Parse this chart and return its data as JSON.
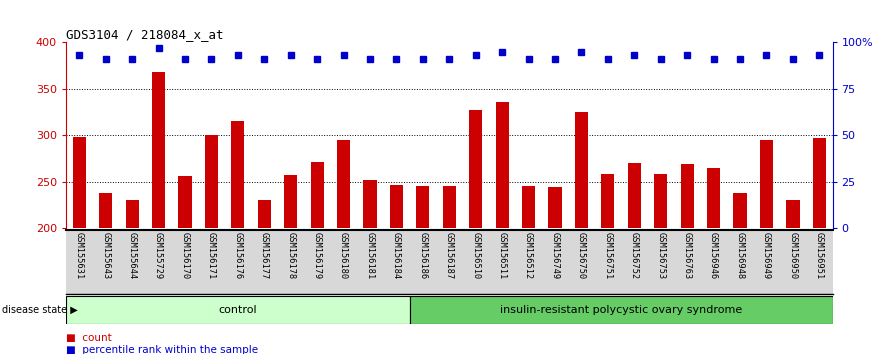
{
  "title": "GDS3104 / 218084_x_at",
  "samples": [
    "GSM155631",
    "GSM155643",
    "GSM155644",
    "GSM155729",
    "GSM156170",
    "GSM156171",
    "GSM156176",
    "GSM156177",
    "GSM156178",
    "GSM156179",
    "GSM156180",
    "GSM156181",
    "GSM156184",
    "GSM156186",
    "GSM156187",
    "GSM156510",
    "GSM156511",
    "GSM156512",
    "GSM156749",
    "GSM156750",
    "GSM156751",
    "GSM156752",
    "GSM156753",
    "GSM156763",
    "GSM156946",
    "GSM156948",
    "GSM156949",
    "GSM156950",
    "GSM156951"
  ],
  "bar_values": [
    298,
    238,
    230,
    368,
    256,
    300,
    315,
    230,
    257,
    271,
    295,
    252,
    247,
    246,
    246,
    327,
    336,
    246,
    245,
    325,
    258,
    270,
    258,
    269,
    265,
    238,
    295,
    230,
    297
  ],
  "dot_values": [
    93,
    91,
    91,
    97,
    91,
    91,
    93,
    91,
    93,
    91,
    93,
    91,
    91,
    91,
    91,
    93,
    95,
    91,
    91,
    95,
    91,
    93,
    91,
    93,
    91,
    91,
    93,
    91,
    93
  ],
  "n_control": 13,
  "control_label": "control",
  "disease_label": "insulin-resistant polycystic ovary syndrome",
  "bar_color": "#CC0000",
  "dot_color": "#0000CC",
  "ylim_left": [
    200,
    400
  ],
  "ylim_right": [
    0,
    100
  ],
  "yticks_left": [
    200,
    250,
    300,
    350,
    400
  ],
  "yticks_right": [
    0,
    25,
    50,
    75,
    100
  ],
  "grid_values": [
    250,
    300,
    350
  ],
  "bg_color": "#ffffff",
  "plot_bg": "#ffffff",
  "control_bg": "#ccffcc",
  "disease_bg": "#66cc66",
  "label_bar": "count",
  "label_dot": "percentile rank within the sample",
  "disease_state_label": "disease state",
  "title_fontsize": 9,
  "tick_fontsize": 8,
  "label_fontsize": 7,
  "bar_width": 0.5,
  "dot_size": 5
}
